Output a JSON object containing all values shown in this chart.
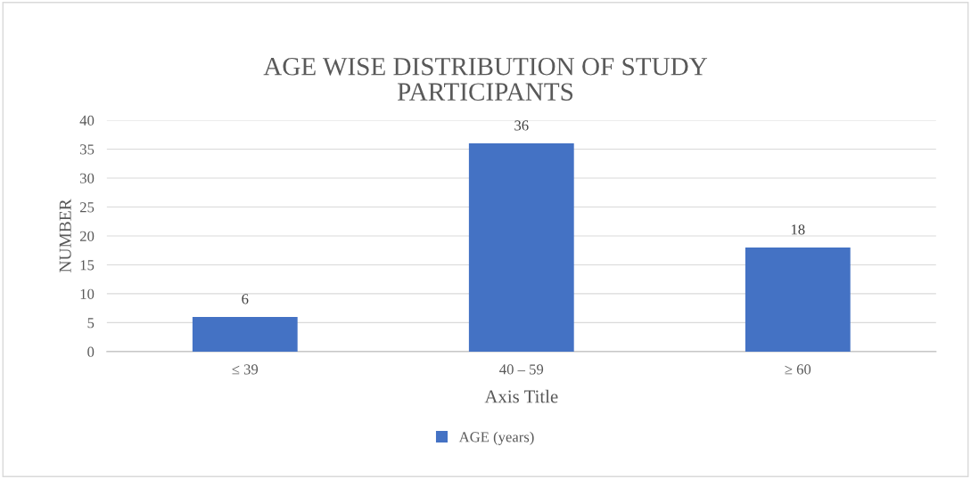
{
  "chart_data": {
    "type": "bar",
    "title": "AGE WISE DISTRIBUTION OF STUDY\nPARTICIPANTS",
    "xlabel": "Axis Title",
    "ylabel": "NUMBER",
    "categories": [
      "≤ 39",
      "40 – 59",
      "≥ 60"
    ],
    "series": [
      {
        "name": "AGE (years)",
        "color": "#4472c4",
        "values": [
          6,
          36,
          18
        ]
      }
    ],
    "ylim": [
      0,
      40
    ],
    "yticks": [
      0,
      5,
      10,
      15,
      20,
      25,
      30,
      35,
      40
    ],
    "grid": "y",
    "legend": "bottom",
    "data_labels": true
  }
}
